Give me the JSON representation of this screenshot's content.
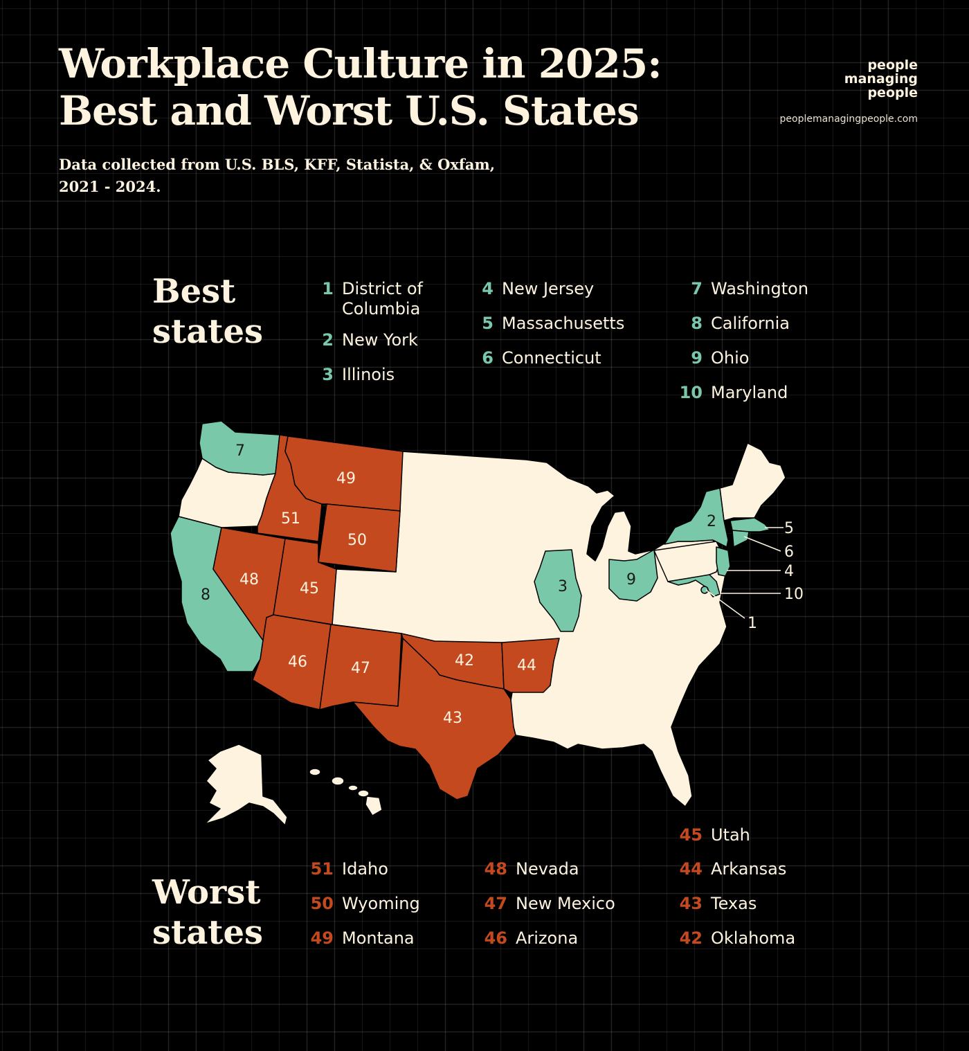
{
  "header": {
    "title_line1": "Workplace Culture in 2025:",
    "title_line2": "Best and Worst U.S. States",
    "subtitle_line1": "Data collected from U.S. BLS, KFF, Statista, & Oxfam,",
    "subtitle_line2": "2021 - 2024."
  },
  "brand": {
    "logo_line1": "people",
    "logo_line2": "managing",
    "logo_line3": "people",
    "website": "peoplemanagingpeople.com"
  },
  "colors": {
    "background": "#000000",
    "best": "#79c8aa",
    "worst": "#c5491f",
    "neutral": "#fdf3df",
    "text": "#fdf3df"
  },
  "best": {
    "heading_line1": "Best",
    "heading_line2": "states",
    "items": [
      {
        "rank": "1",
        "name": "District of Columbia"
      },
      {
        "rank": "2",
        "name": "New York"
      },
      {
        "rank": "3",
        "name": "Illinois"
      },
      {
        "rank": "4",
        "name": "New Jersey"
      },
      {
        "rank": "5",
        "name": "Massachusetts"
      },
      {
        "rank": "6",
        "name": "Connecticut"
      },
      {
        "rank": "7",
        "name": "Washington"
      },
      {
        "rank": "8",
        "name": "California"
      },
      {
        "rank": "9",
        "name": "Ohio"
      },
      {
        "rank": "10",
        "name": "Maryland"
      }
    ]
  },
  "worst": {
    "heading_line1": "Worst",
    "heading_line2": "states",
    "items": [
      {
        "rank": "51",
        "name": "Idaho"
      },
      {
        "rank": "50",
        "name": "Wyoming"
      },
      {
        "rank": "49",
        "name": "Montana"
      },
      {
        "rank": "48",
        "name": "Nevada"
      },
      {
        "rank": "47",
        "name": "New Mexico"
      },
      {
        "rank": "46",
        "name": "Arizona"
      },
      {
        "rank": "45",
        "name": "Utah"
      },
      {
        "rank": "44",
        "name": "Arkansas"
      },
      {
        "rank": "43",
        "name": "Texas"
      },
      {
        "rank": "42",
        "name": "Oklahoma"
      }
    ]
  }
}
